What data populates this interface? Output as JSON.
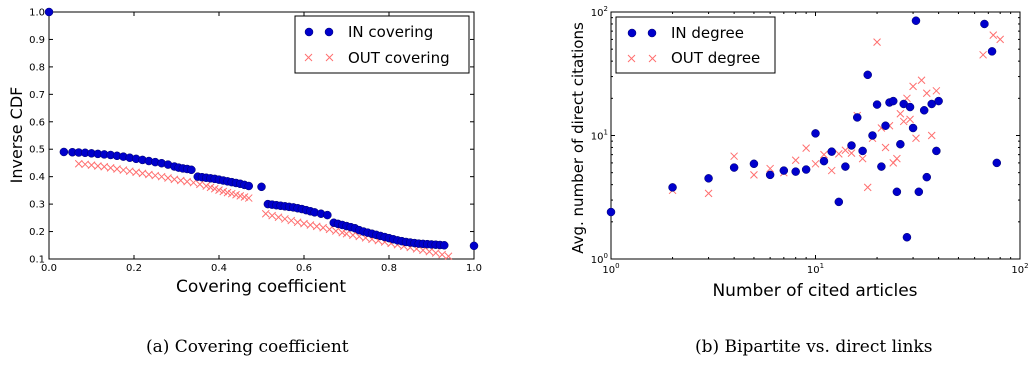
{
  "captions": {
    "a": "(a) Covering coefficient",
    "b": "(b) Bipartite vs. direct links"
  },
  "colors": {
    "in": "#0000cc",
    "out": "#ff6f6f",
    "axis": "#000000"
  },
  "chart_data": [
    {
      "type": "scatter",
      "xlabel": "Covering coefficient",
      "ylabel": "Inverse CDF",
      "xlim": [
        0.0,
        1.0
      ],
      "ylim": [
        0.1,
        1.0
      ],
      "xticks": [
        "0.0",
        "0.2",
        "0.4",
        "0.6",
        "0.8",
        "1.0"
      ],
      "yticks": [
        "0.1",
        "0.2",
        "0.3",
        "0.4",
        "0.5",
        "0.6",
        "0.7",
        "0.8",
        "0.9",
        "1.0"
      ],
      "legend_position": "top-right",
      "series": [
        {
          "name": "IN covering",
          "marker": "circle",
          "x": [
            0.0,
            0.035,
            0.055,
            0.07,
            0.085,
            0.1,
            0.115,
            0.13,
            0.145,
            0.16,
            0.175,
            0.19,
            0.205,
            0.22,
            0.235,
            0.25,
            0.265,
            0.28,
            0.295,
            0.305,
            0.315,
            0.325,
            0.335,
            0.35,
            0.36,
            0.37,
            0.38,
            0.39,
            0.4,
            0.41,
            0.42,
            0.43,
            0.44,
            0.45,
            0.46,
            0.47,
            0.5,
            0.515,
            0.525,
            0.535,
            0.545,
            0.555,
            0.565,
            0.575,
            0.585,
            0.595,
            0.605,
            0.615,
            0.625,
            0.64,
            0.655,
            0.67,
            0.68,
            0.69,
            0.7,
            0.71,
            0.72,
            0.73,
            0.74,
            0.75,
            0.76,
            0.77,
            0.78,
            0.79,
            0.8,
            0.81,
            0.82,
            0.83,
            0.84,
            0.85,
            0.86,
            0.87,
            0.88,
            0.89,
            0.9,
            0.91,
            0.92,
            0.93,
            1.0
          ],
          "y": [
            1.0,
            0.49,
            0.489,
            0.488,
            0.487,
            0.485,
            0.483,
            0.481,
            0.479,
            0.476,
            0.473,
            0.469,
            0.465,
            0.461,
            0.457,
            0.453,
            0.449,
            0.444,
            0.437,
            0.433,
            0.43,
            0.428,
            0.425,
            0.4,
            0.398,
            0.396,
            0.394,
            0.392,
            0.389,
            0.386,
            0.383,
            0.38,
            0.377,
            0.374,
            0.37,
            0.366,
            0.363,
            0.3,
            0.298,
            0.296,
            0.294,
            0.292,
            0.29,
            0.288,
            0.285,
            0.282,
            0.278,
            0.274,
            0.27,
            0.265,
            0.26,
            0.232,
            0.228,
            0.224,
            0.22,
            0.216,
            0.212,
            0.205,
            0.2,
            0.196,
            0.192,
            0.188,
            0.184,
            0.18,
            0.176,
            0.172,
            0.168,
            0.165,
            0.162,
            0.16,
            0.158,
            0.156,
            0.155,
            0.154,
            0.153,
            0.152,
            0.151,
            0.15,
            0.148
          ]
        },
        {
          "name": "OUT covering",
          "marker": "x",
          "x": [
            0.07,
            0.085,
            0.1,
            0.115,
            0.13,
            0.145,
            0.16,
            0.175,
            0.19,
            0.205,
            0.22,
            0.235,
            0.25,
            0.265,
            0.28,
            0.295,
            0.31,
            0.325,
            0.34,
            0.355,
            0.37,
            0.38,
            0.39,
            0.4,
            0.41,
            0.42,
            0.43,
            0.44,
            0.45,
            0.46,
            0.47,
            0.51,
            0.525,
            0.54,
            0.555,
            0.57,
            0.585,
            0.6,
            0.615,
            0.63,
            0.645,
            0.66,
            0.675,
            0.69,
            0.7,
            0.715,
            0.73,
            0.745,
            0.76,
            0.775,
            0.79,
            0.805,
            0.82,
            0.835,
            0.85,
            0.865,
            0.88,
            0.895,
            0.91,
            0.925,
            0.94
          ],
          "y": [
            0.447,
            0.445,
            0.442,
            0.439,
            0.436,
            0.432,
            0.428,
            0.424,
            0.42,
            0.416,
            0.412,
            0.408,
            0.404,
            0.4,
            0.395,
            0.39,
            0.386,
            0.382,
            0.378,
            0.372,
            0.366,
            0.361,
            0.356,
            0.351,
            0.346,
            0.342,
            0.338,
            0.334,
            0.33,
            0.326,
            0.322,
            0.265,
            0.258,
            0.252,
            0.246,
            0.24,
            0.234,
            0.229,
            0.224,
            0.219,
            0.214,
            0.208,
            0.202,
            0.196,
            0.192,
            0.187,
            0.182,
            0.177,
            0.172,
            0.167,
            0.162,
            0.157,
            0.152,
            0.147,
            0.142,
            0.137,
            0.132,
            0.127,
            0.122,
            0.116,
            0.11
          ]
        }
      ]
    },
    {
      "type": "scatter",
      "xlabel": "Number of cited articles",
      "ylabel": "Avg. number of direct citations",
      "xscale": "log",
      "yscale": "log",
      "xlim": [
        1,
        100
      ],
      "ylim": [
        1,
        100
      ],
      "xtick_values": [
        1,
        10,
        100
      ],
      "xticks": [
        "10^0",
        "10^1",
        "10^2"
      ],
      "ytick_values": [
        1,
        10,
        100
      ],
      "yticks": [
        "10^0",
        "10^1",
        "10^2"
      ],
      "legend_position": "top-left",
      "series": [
        {
          "name": "IN degree",
          "marker": "circle",
          "x": [
            1,
            2,
            3,
            4,
            5,
            6,
            7,
            8,
            9,
            10,
            11,
            12,
            13,
            14,
            15,
            16,
            17,
            18,
            19,
            20,
            21,
            22,
            23,
            24,
            25,
            26,
            27,
            28,
            29,
            30,
            31,
            32,
            34,
            35,
            37,
            39,
            40,
            67,
            73,
            77
          ],
          "y": [
            2.4,
            3.8,
            4.5,
            5.5,
            5.9,
            4.8,
            5.2,
            5.1,
            5.3,
            10.4,
            6.2,
            7.4,
            2.9,
            5.6,
            8.3,
            14.0,
            7.5,
            31.0,
            10.0,
            17.8,
            5.6,
            12.0,
            18.5,
            19.0,
            3.5,
            8.5,
            18.0,
            1.5,
            17.0,
            11.5,
            85.0,
            3.5,
            16.0,
            4.6,
            18.0,
            7.5,
            19.0,
            80.0,
            48.0,
            6.0
          ]
        },
        {
          "name": "OUT degree",
          "marker": "x",
          "x": [
            2,
            3,
            4,
            5,
            6,
            7,
            8,
            9,
            10,
            11,
            12,
            13,
            14,
            15,
            16,
            17,
            18,
            19,
            20,
            21,
            22,
            23,
            24,
            25,
            26,
            27,
            28,
            29,
            30,
            31,
            33,
            35,
            37,
            39,
            66,
            74,
            80
          ],
          "y": [
            3.6,
            3.4,
            6.8,
            4.8,
            5.4,
            5.0,
            6.3,
            7.9,
            5.9,
            7.0,
            5.2,
            7.1,
            7.6,
            7.2,
            14.5,
            6.5,
            3.8,
            9.5,
            57.0,
            11.5,
            8.0,
            12.0,
            6.0,
            6.5,
            15.0,
            13.0,
            20.0,
            13.5,
            25.0,
            9.5,
            28.0,
            22.0,
            10.0,
            23.0,
            45.0,
            65.0,
            60.0
          ]
        }
      ]
    }
  ]
}
